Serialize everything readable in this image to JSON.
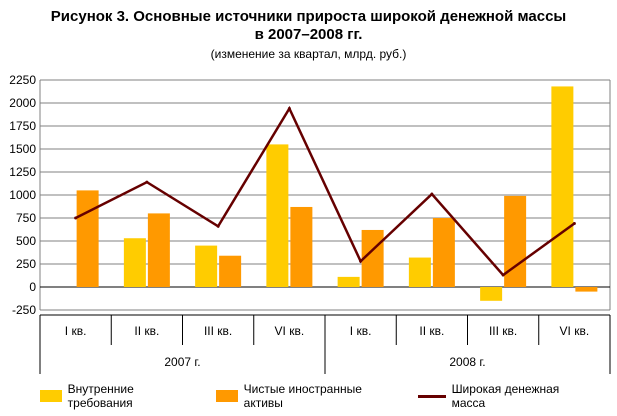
{
  "title": "Рисунок 3. Основные источники прироста широкой денежной массы",
  "title_line2": "в 2007–2008 гг.",
  "subtitle": "(изменение за квартал, млрд. руб.)",
  "colors": {
    "domestic": "#FFCC00",
    "foreign": "#FF9900",
    "money": "#660000",
    "grid": "#808080"
  },
  "chart_data": {
    "type": "bar",
    "title": "Рисунок 3. Основные источники прироста широкой денежной массы в 2007–2008 гг.",
    "subtitle": "(изменение за квартал, млрд. руб.)",
    "categories": [
      "I кв.",
      "II кв.",
      "III кв.",
      "VI кв.",
      "I кв.",
      "II кв.",
      "III кв.",
      "VI кв."
    ],
    "groups": [
      {
        "label": "2007 г.",
        "count": 4
      },
      {
        "label": "2008 г.",
        "count": 4
      }
    ],
    "yticks": [
      -250,
      0,
      250,
      500,
      750,
      1000,
      1250,
      1500,
      1750,
      2000,
      2250
    ],
    "ylim": [
      -250,
      2250
    ],
    "grid": true,
    "legend_position": "bottom",
    "series": [
      {
        "name": "Внутренние требования",
        "type": "bar",
        "values": [
          0,
          530,
          450,
          1550,
          110,
          320,
          -150,
          2180
        ]
      },
      {
        "name": "Чистые иностранные активы",
        "type": "bar",
        "values": [
          1050,
          800,
          340,
          870,
          620,
          750,
          990,
          -50
        ]
      },
      {
        "name": "Широкая денежная масса",
        "type": "line",
        "values": [
          750,
          1140,
          660,
          1940,
          280,
          1010,
          130,
          690
        ]
      }
    ]
  }
}
